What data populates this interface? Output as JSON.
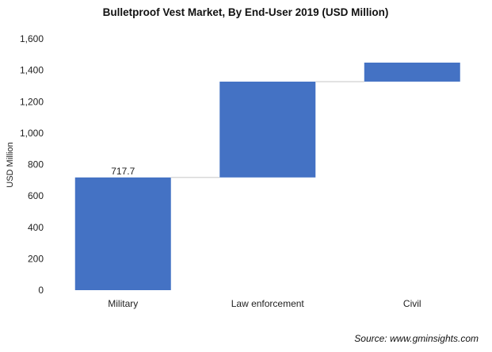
{
  "chart_data": {
    "type": "waterfall",
    "title": "Bulletproof Vest Market, By End-User 2019 (USD Million)",
    "xlabel": "",
    "ylabel": "USD Million",
    "ylim": [
      0,
      1600
    ],
    "yticks": [
      "0",
      "200",
      "400",
      "600",
      "800",
      "1,000",
      "1,200",
      "1,400",
      "1,600"
    ],
    "ytick_values": [
      0,
      200,
      400,
      600,
      800,
      1000,
      1200,
      1400,
      1600
    ],
    "categories": [
      "Military",
      "Law enforcement",
      "Civil"
    ],
    "values": [
      717.7,
      610,
      121
    ],
    "data_labels": [
      "717.7",
      "",
      ""
    ],
    "grid": false,
    "bar_color": "#4472C4",
    "connector_color": "#D9D9D9"
  },
  "source": "Source: www.gminsights.com"
}
